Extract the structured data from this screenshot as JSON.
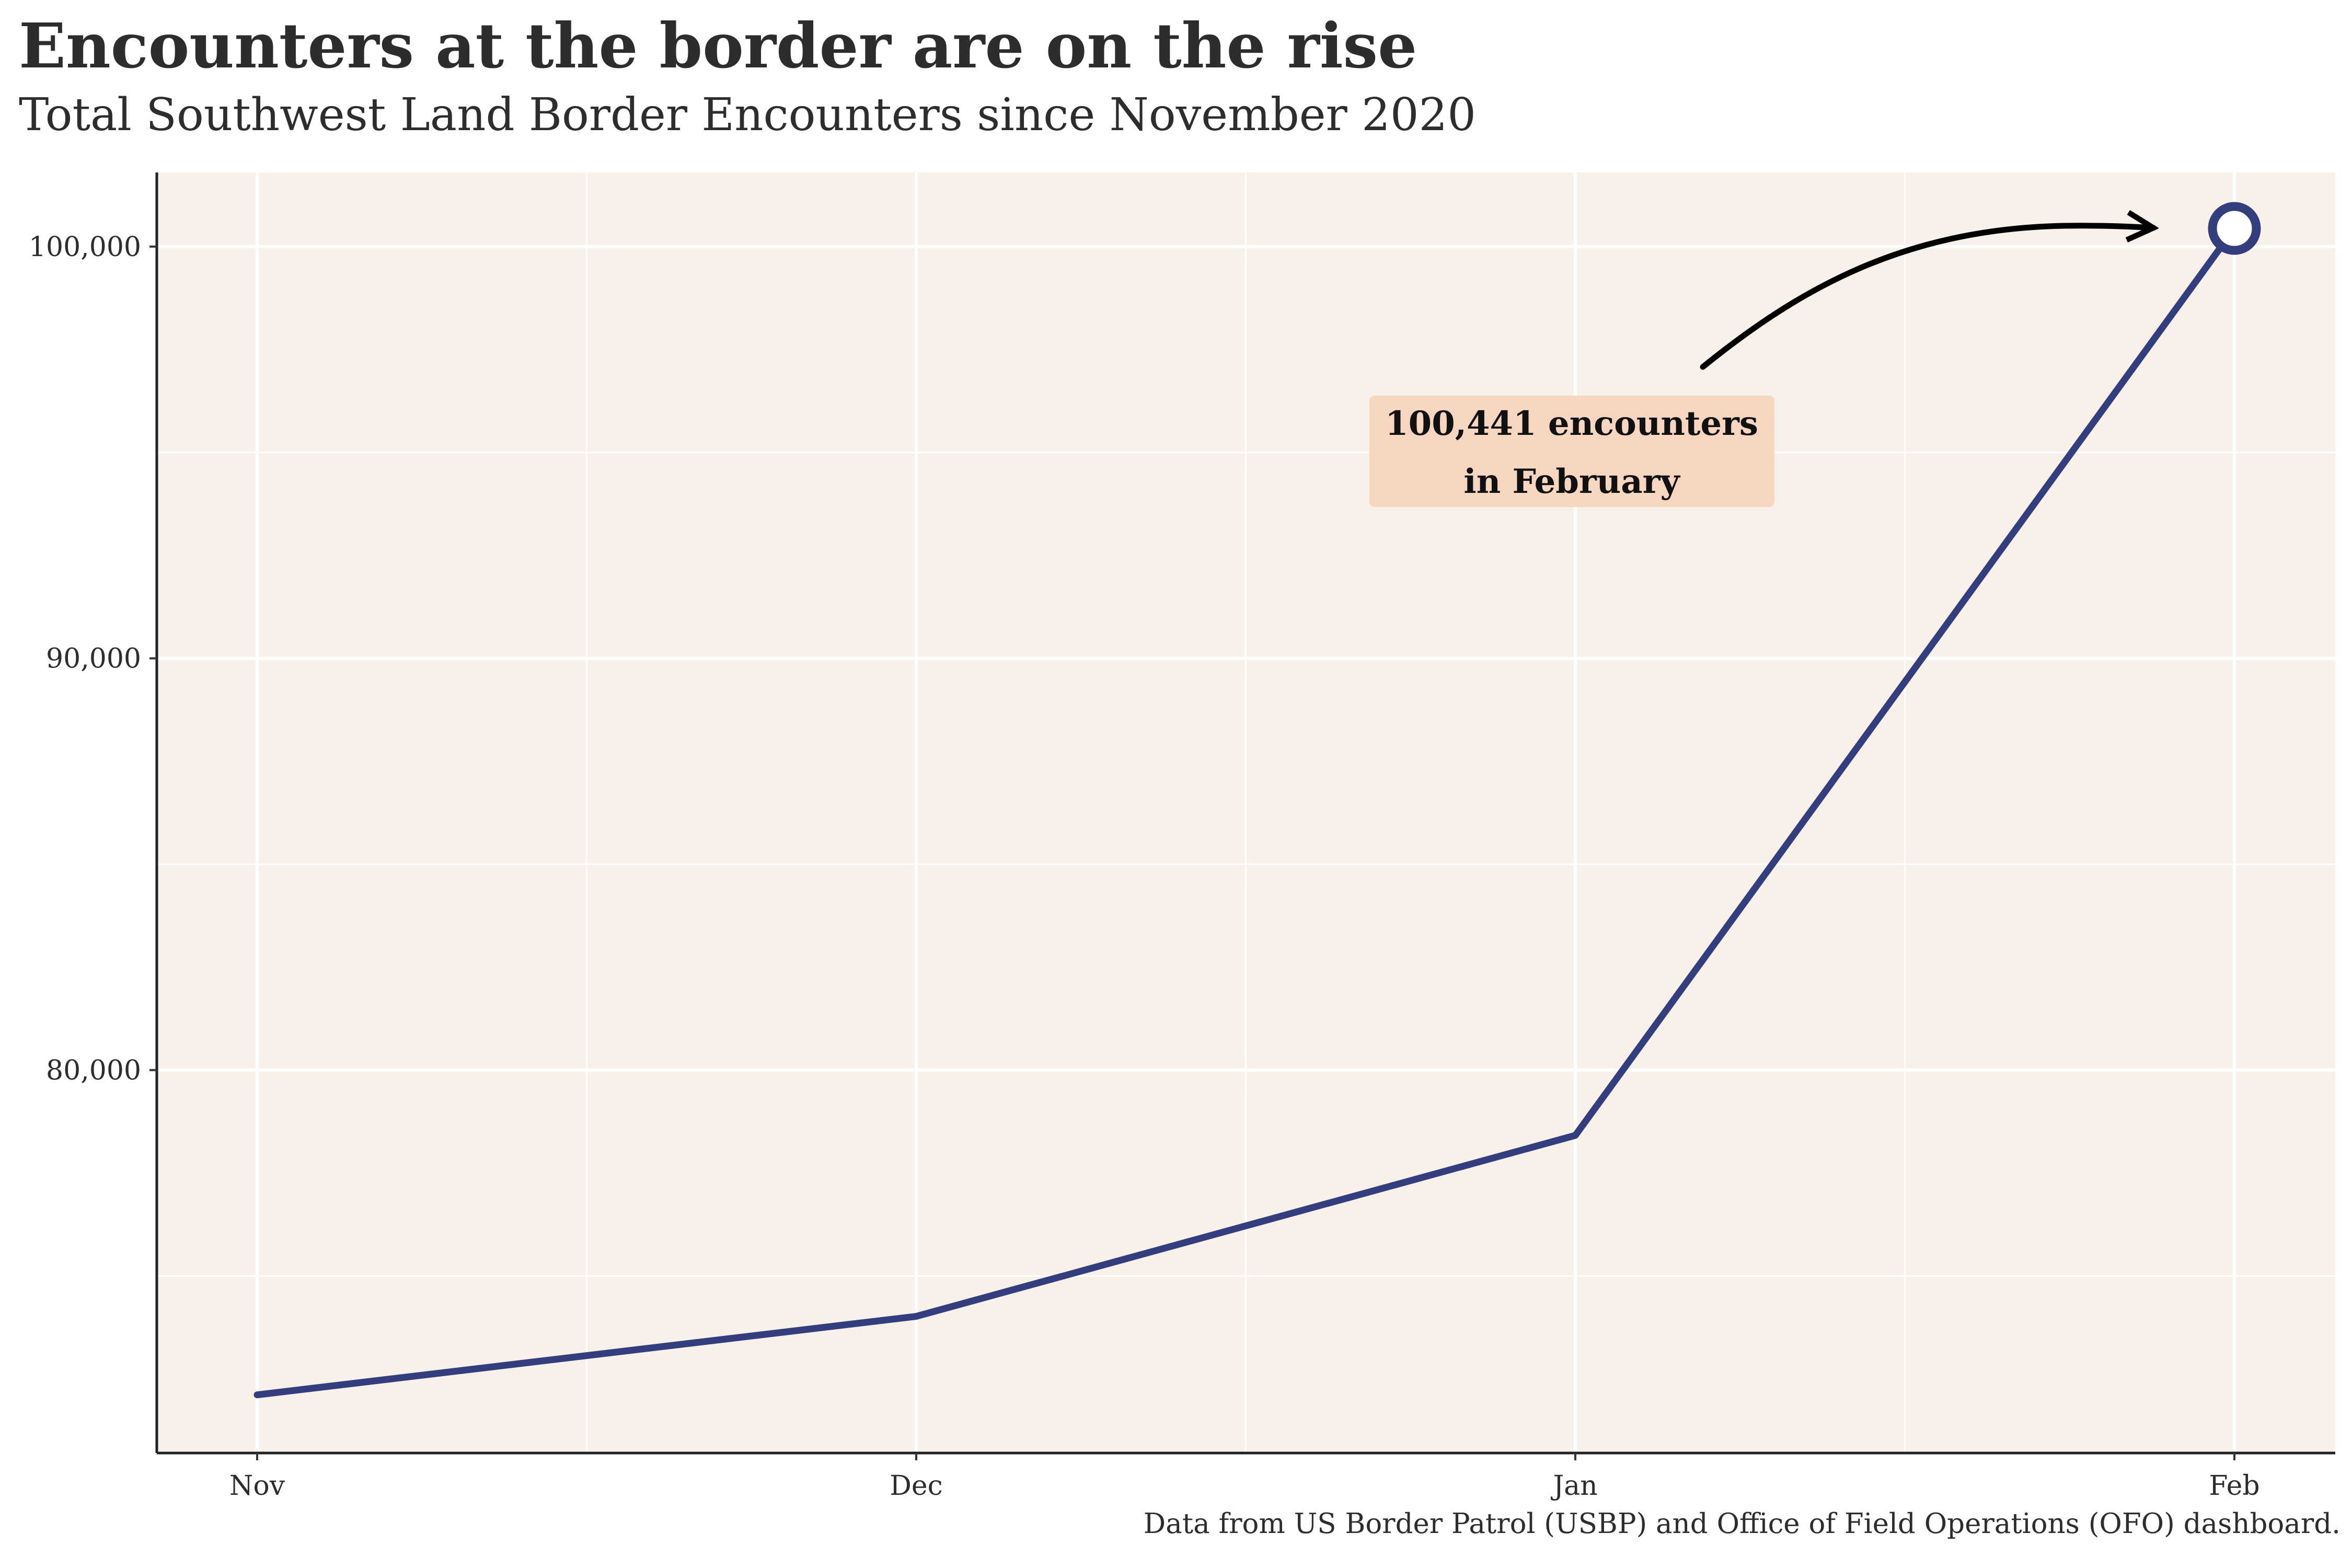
{
  "title": "Encounters at the border are on the rise",
  "subtitle": "Total Southwest Land Border Encounters since November 2020",
  "caption": "Data from US Border Patrol (USBP) and Office of Field Operations (OFO) dashboard.",
  "annotation": {
    "line1": "100,441 encounters",
    "line2": "in February"
  },
  "colors": {
    "panel_background": "#f8f1ea",
    "line": "#343d7e",
    "annotation_fill": "#f6d6c1",
    "grid": "#ffffff"
  },
  "chart_data": {
    "type": "line",
    "title": "Encounters at the border are on the rise",
    "subtitle": "Total Southwest Land Border Encounters since November 2020",
    "xlabel": "",
    "ylabel": "",
    "categories": [
      "Nov",
      "Dec",
      "Jan",
      "Feb"
    ],
    "series": [
      {
        "values": [
          72113,
          74019,
          78414,
          100441
        ]
      }
    ],
    "yticks": [
      80000,
      90000,
      100000
    ],
    "ytick_labels": [
      "80,000",
      "90,000",
      "100,000"
    ],
    "ylim": [
      70700,
      101800
    ],
    "grid": true,
    "highlight_last_point": true
  }
}
